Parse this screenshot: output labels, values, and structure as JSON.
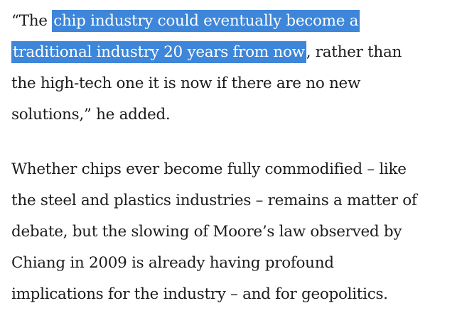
{
  "article": {
    "paragraph_1": {
      "line_1_before": "“The ",
      "line_1_highlight": "chip industry could eventually become a",
      "line_2_highlight": "traditional industry 20 years from now",
      "line_2_after": ", rather than",
      "line_3": "the high-tech one it is now if there are no new",
      "line_4": "solutions,” he added."
    },
    "paragraph_2": {
      "lines": [
        "Whether chips ever become fully commodified – like",
        "the steel and plastics industries – remains a matter of",
        "debate, but the slowing of Moore’s law observed by",
        "Chiang in 2009 is already having profound",
        "implications for the industry – and for geopolitics."
      ]
    },
    "highlight_color": "#3d86d9"
  }
}
